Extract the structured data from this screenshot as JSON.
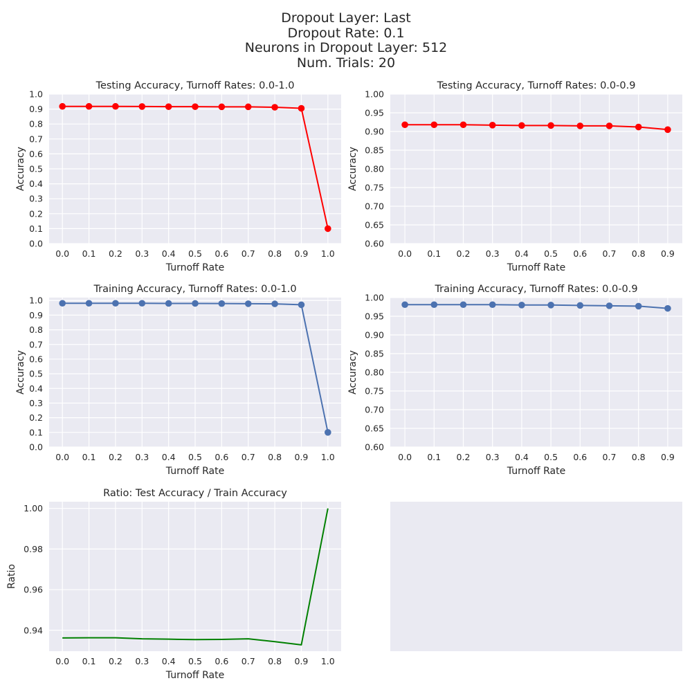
{
  "figure": {
    "suptitle_lines": [
      "Dropout Layer: Last",
      "Dropout Rate: 0.1",
      "Neurons in Dropout Layer: 512",
      "Num. Trials: 20"
    ]
  },
  "colors": {
    "panel_bg": "#eaeaf2",
    "grid": "#ffffff",
    "text": "#262626",
    "testing": "#ff0000",
    "training": "#4c72b0",
    "ratio": "#008000"
  },
  "chart_data": [
    {
      "id": "test_full",
      "type": "line",
      "title": "Testing Accuracy, Turnoff Rates: 0.0-1.0",
      "xlabel": "Turnoff Rate",
      "ylabel": "Accuracy",
      "x": [
        0.0,
        0.1,
        0.2,
        0.3,
        0.4,
        0.5,
        0.6,
        0.7,
        0.8,
        0.9,
        1.0
      ],
      "xtick_labels": [
        "0.0",
        "0.1",
        "0.2",
        "0.3",
        "0.4",
        "0.5",
        "0.6",
        "0.7",
        "0.8",
        "0.9",
        "1.0"
      ],
      "xlim": [
        -0.05,
        1.05
      ],
      "ylim": [
        0.0,
        1.0
      ],
      "ytick_labels": [
        "0.0",
        "0.1",
        "0.2",
        "0.3",
        "0.4",
        "0.5",
        "0.6",
        "0.7",
        "0.8",
        "0.9",
        "1.0"
      ],
      "grid": true,
      "series": [
        {
          "values": [
            0.918,
            0.918,
            0.918,
            0.917,
            0.916,
            0.916,
            0.915,
            0.915,
            0.912,
            0.905,
            0.1
          ],
          "color": "#ff0000",
          "marker": "circle"
        }
      ]
    },
    {
      "id": "test_zoom",
      "type": "line",
      "title": "Testing Accuracy, Turnoff Rates: 0.0-0.9",
      "xlabel": "Turnoff Rate",
      "ylabel": "Accuracy",
      "x": [
        0.0,
        0.1,
        0.2,
        0.3,
        0.4,
        0.5,
        0.6,
        0.7,
        0.8,
        0.9
      ],
      "xtick_labels": [
        "0.0",
        "0.1",
        "0.2",
        "0.3",
        "0.4",
        "0.5",
        "0.6",
        "0.7",
        "0.8",
        "0.9"
      ],
      "xlim": [
        -0.05,
        0.95
      ],
      "ylim": [
        0.6,
        1.0
      ],
      "ytick_labels": [
        "0.60",
        "0.65",
        "0.70",
        "0.75",
        "0.80",
        "0.85",
        "0.90",
        "0.95",
        "1.00"
      ],
      "grid": true,
      "series": [
        {
          "values": [
            0.918,
            0.918,
            0.918,
            0.917,
            0.916,
            0.916,
            0.915,
            0.915,
            0.912,
            0.905
          ],
          "color": "#ff0000",
          "marker": "circle"
        }
      ]
    },
    {
      "id": "train_full",
      "type": "line",
      "title": "Training Accuracy, Turnoff Rates: 0.0-1.0",
      "xlabel": "Turnoff Rate",
      "ylabel": "Accuracy",
      "x": [
        0.0,
        0.1,
        0.2,
        0.3,
        0.4,
        0.5,
        0.6,
        0.7,
        0.8,
        0.9,
        1.0
      ],
      "xtick_labels": [
        "0.0",
        "0.1",
        "0.2",
        "0.3",
        "0.4",
        "0.5",
        "0.6",
        "0.7",
        "0.8",
        "0.9",
        "1.0"
      ],
      "xlim": [
        -0.05,
        1.05
      ],
      "ylim": [
        0.0,
        1.02
      ],
      "ytick_labels": [
        "0.0",
        "0.1",
        "0.2",
        "0.3",
        "0.4",
        "0.5",
        "0.6",
        "0.7",
        "0.8",
        "0.9",
        "1.0"
      ],
      "grid": true,
      "series": [
        {
          "values": [
            0.981,
            0.981,
            0.981,
            0.981,
            0.98,
            0.98,
            0.979,
            0.978,
            0.977,
            0.971,
            0.1
          ],
          "color": "#4c72b0",
          "marker": "circle"
        }
      ]
    },
    {
      "id": "train_zoom",
      "type": "line",
      "title": "Training Accuracy, Turnoff Rates: 0.0-0.9",
      "xlabel": "Turnoff Rate",
      "ylabel": "Accuracy",
      "x": [
        0.0,
        0.1,
        0.2,
        0.3,
        0.4,
        0.5,
        0.6,
        0.7,
        0.8,
        0.9
      ],
      "xtick_labels": [
        "0.0",
        "0.1",
        "0.2",
        "0.3",
        "0.4",
        "0.5",
        "0.6",
        "0.7",
        "0.8",
        "0.9"
      ],
      "xlim": [
        -0.05,
        0.95
      ],
      "ylim": [
        0.6,
        1.0
      ],
      "ytick_labels": [
        "0.60",
        "0.65",
        "0.70",
        "0.75",
        "0.80",
        "0.85",
        "0.90",
        "0.95",
        "1.00"
      ],
      "grid": true,
      "series": [
        {
          "values": [
            0.981,
            0.981,
            0.981,
            0.981,
            0.98,
            0.98,
            0.979,
            0.978,
            0.977,
            0.971
          ],
          "color": "#4c72b0",
          "marker": "circle"
        }
      ]
    },
    {
      "id": "ratio",
      "type": "line",
      "title": "Ratio: Test Accuracy / Train Accuracy",
      "xlabel": "Turnoff Rate",
      "ylabel": "Ratio",
      "x": [
        0.0,
        0.1,
        0.2,
        0.3,
        0.4,
        0.5,
        0.6,
        0.7,
        0.8,
        0.9,
        1.0
      ],
      "xtick_labels": [
        "0.0",
        "0.1",
        "0.2",
        "0.3",
        "0.4",
        "0.5",
        "0.6",
        "0.7",
        "0.8",
        "0.9",
        "1.0"
      ],
      "xlim": [
        -0.05,
        1.05
      ],
      "ylim": [
        0.9297,
        1.0033
      ],
      "ytick_values": [
        0.94,
        0.96,
        0.98,
        1.0
      ],
      "ytick_labels": [
        "0.94",
        "0.96",
        "0.98",
        "1.00"
      ],
      "grid": true,
      "series": [
        {
          "values": [
            0.9362,
            0.9363,
            0.9363,
            0.9358,
            0.9356,
            0.9354,
            0.9355,
            0.9358,
            0.9344,
            0.9328,
            1.0
          ],
          "color": "#008000",
          "marker": "none"
        }
      ]
    },
    {
      "id": "empty",
      "type": "line",
      "title": "",
      "xlabel": "",
      "ylabel": "",
      "x": [],
      "grid": false,
      "series": []
    }
  ]
}
